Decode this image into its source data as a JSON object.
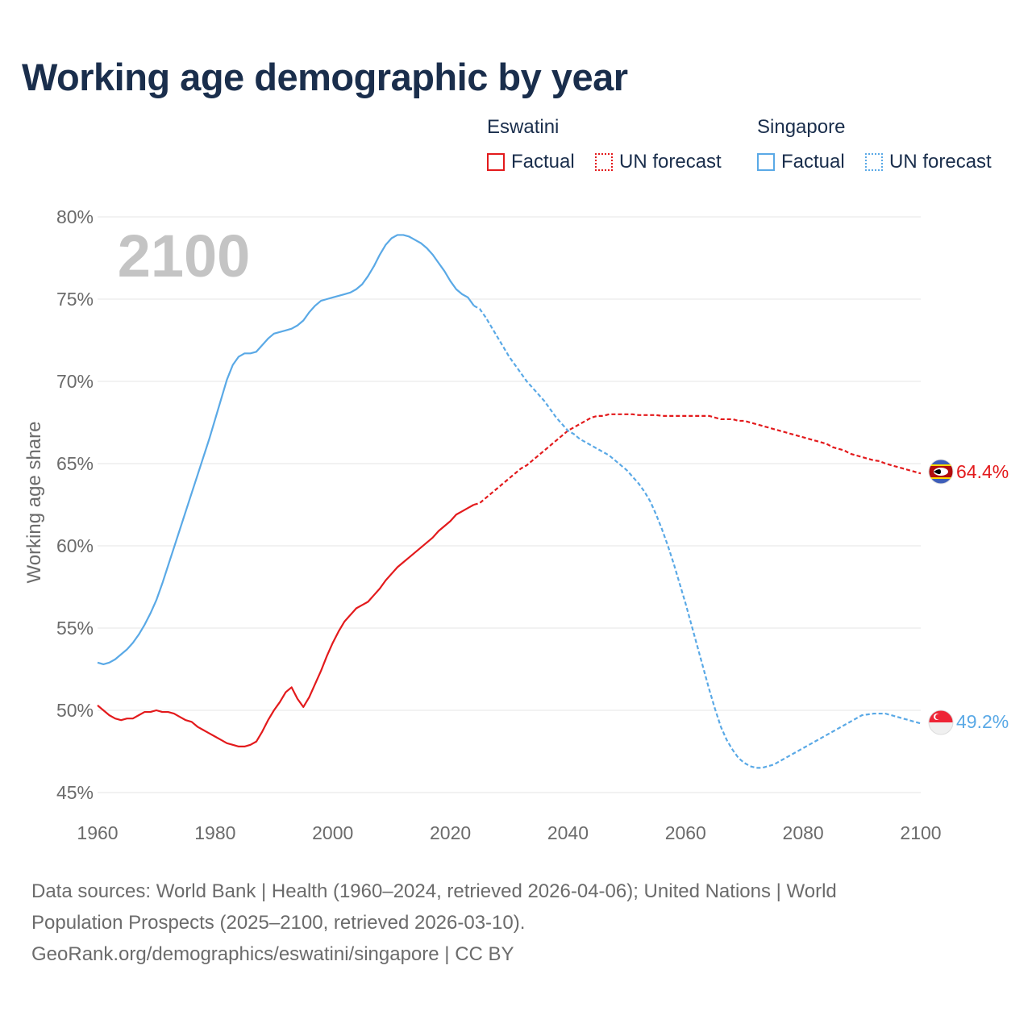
{
  "title": "Working age demographic by year",
  "legend": {
    "groups": [
      {
        "name": "Eswatini",
        "color": "#e31a1c",
        "factual_label": "Factual",
        "forecast_label": "UN forecast"
      },
      {
        "name": "Singapore",
        "color": "#5aa9e6",
        "factual_label": "Factual",
        "forecast_label": "UN forecast"
      }
    ]
  },
  "year_watermark": "2100",
  "end_labels": {
    "eswatini": "64.4%",
    "singapore": "49.2%"
  },
  "footer": {
    "line1": "Data sources: World Bank | Health (1960–2024, retrieved 2026-04-06); United Nations | World",
    "line2": "Population Prospects (2025–2100, retrieved 2026-03-10).",
    "line3": "GeoRank.org/demographics/eswatini/singapore | CC BY"
  },
  "chart_data": {
    "type": "line",
    "title": "Working age demographic by year",
    "xlabel": "",
    "ylabel": "Working age share",
    "xlim": [
      1960,
      2100
    ],
    "ylim": [
      45,
      80
    ],
    "x_ticks": [
      1960,
      1980,
      2000,
      2020,
      2040,
      2060,
      2080,
      2100
    ],
    "x_tick_labels": [
      "1960",
      "1980",
      "2000",
      "2020",
      "2040",
      "2060",
      "2080",
      "2100"
    ],
    "y_ticks": [
      45,
      50,
      55,
      60,
      65,
      70,
      75,
      80
    ],
    "y_tick_labels": [
      "45%",
      "50%",
      "55%",
      "60%",
      "65%",
      "70%",
      "75%",
      "80%"
    ],
    "grid": true,
    "legend_position": "top-right",
    "forecast_start_year": 2024,
    "series": [
      {
        "name": "Eswatini",
        "color": "#e31a1c",
        "end_value": 64.4,
        "points": [
          [
            1960,
            50.3
          ],
          [
            1961,
            50.0
          ],
          [
            1962,
            49.7
          ],
          [
            1963,
            49.5
          ],
          [
            1964,
            49.4
          ],
          [
            1965,
            49.5
          ],
          [
            1966,
            49.5
          ],
          [
            1967,
            49.7
          ],
          [
            1968,
            49.9
          ],
          [
            1969,
            49.9
          ],
          [
            1970,
            50.0
          ],
          [
            1971,
            49.9
          ],
          [
            1972,
            49.9
          ],
          [
            1973,
            49.8
          ],
          [
            1974,
            49.6
          ],
          [
            1975,
            49.4
          ],
          [
            1976,
            49.3
          ],
          [
            1977,
            49.0
          ],
          [
            1978,
            48.8
          ],
          [
            1979,
            48.6
          ],
          [
            1980,
            48.4
          ],
          [
            1981,
            48.2
          ],
          [
            1982,
            48.0
          ],
          [
            1983,
            47.9
          ],
          [
            1984,
            47.8
          ],
          [
            1985,
            47.8
          ],
          [
            1986,
            47.9
          ],
          [
            1987,
            48.1
          ],
          [
            1988,
            48.7
          ],
          [
            1989,
            49.4
          ],
          [
            1990,
            50.0
          ],
          [
            1991,
            50.5
          ],
          [
            1992,
            51.1
          ],
          [
            1993,
            51.4
          ],
          [
            1994,
            50.7
          ],
          [
            1995,
            50.2
          ],
          [
            1996,
            50.8
          ],
          [
            1997,
            51.6
          ],
          [
            1998,
            52.4
          ],
          [
            1999,
            53.3
          ],
          [
            2000,
            54.1
          ],
          [
            2001,
            54.8
          ],
          [
            2002,
            55.4
          ],
          [
            2003,
            55.8
          ],
          [
            2004,
            56.2
          ],
          [
            2005,
            56.4
          ],
          [
            2006,
            56.6
          ],
          [
            2007,
            57.0
          ],
          [
            2008,
            57.4
          ],
          [
            2009,
            57.9
          ],
          [
            2010,
            58.3
          ],
          [
            2011,
            58.7
          ],
          [
            2012,
            59.0
          ],
          [
            2013,
            59.3
          ],
          [
            2014,
            59.6
          ],
          [
            2015,
            59.9
          ],
          [
            2016,
            60.2
          ],
          [
            2017,
            60.5
          ],
          [
            2018,
            60.9
          ],
          [
            2019,
            61.2
          ],
          [
            2020,
            61.5
          ],
          [
            2021,
            61.9
          ],
          [
            2022,
            62.1
          ],
          [
            2023,
            62.3
          ],
          [
            2024,
            62.5
          ],
          [
            2025,
            62.6
          ],
          [
            2026,
            62.9
          ],
          [
            2027,
            63.2
          ],
          [
            2028,
            63.5
          ],
          [
            2029,
            63.8
          ],
          [
            2030,
            64.1
          ],
          [
            2031,
            64.4
          ],
          [
            2032,
            64.7
          ],
          [
            2033,
            64.9
          ],
          [
            2034,
            65.2
          ],
          [
            2035,
            65.5
          ],
          [
            2036,
            65.8
          ],
          [
            2037,
            66.1
          ],
          [
            2038,
            66.4
          ],
          [
            2039,
            66.7
          ],
          [
            2040,
            67.0
          ],
          [
            2041,
            67.2
          ],
          [
            2042,
            67.4
          ],
          [
            2043,
            67.6
          ],
          [
            2044,
            67.8
          ],
          [
            2045,
            67.9
          ],
          [
            2046,
            67.9
          ],
          [
            2047,
            68.0
          ],
          [
            2048,
            68.0
          ],
          [
            2049,
            68.0
          ],
          [
            2050,
            68.0
          ],
          [
            2051,
            68.0
          ],
          [
            2052,
            67.95
          ],
          [
            2053,
            67.95
          ],
          [
            2054,
            67.95
          ],
          [
            2055,
            67.95
          ],
          [
            2056,
            67.9
          ],
          [
            2057,
            67.9
          ],
          [
            2058,
            67.9
          ],
          [
            2059,
            67.9
          ],
          [
            2060,
            67.9
          ],
          [
            2061,
            67.9
          ],
          [
            2062,
            67.9
          ],
          [
            2063,
            67.9
          ],
          [
            2064,
            67.9
          ],
          [
            2065,
            67.8
          ],
          [
            2066,
            67.7
          ],
          [
            2067,
            67.7
          ],
          [
            2068,
            67.7
          ],
          [
            2069,
            67.6
          ],
          [
            2070,
            67.6
          ],
          [
            2071,
            67.5
          ],
          [
            2072,
            67.4
          ],
          [
            2073,
            67.3
          ],
          [
            2074,
            67.2
          ],
          [
            2075,
            67.1
          ],
          [
            2076,
            67.0
          ],
          [
            2077,
            66.9
          ],
          [
            2078,
            66.8
          ],
          [
            2079,
            66.7
          ],
          [
            2080,
            66.6
          ],
          [
            2081,
            66.5
          ],
          [
            2082,
            66.4
          ],
          [
            2083,
            66.3
          ],
          [
            2084,
            66.2
          ],
          [
            2085,
            66.0
          ],
          [
            2086,
            65.9
          ],
          [
            2087,
            65.8
          ],
          [
            2088,
            65.6
          ],
          [
            2089,
            65.5
          ],
          [
            2090,
            65.4
          ],
          [
            2091,
            65.3
          ],
          [
            2092,
            65.2
          ],
          [
            2093,
            65.15
          ],
          [
            2094,
            65.0
          ],
          [
            2095,
            64.9
          ],
          [
            2096,
            64.8
          ],
          [
            2097,
            64.7
          ],
          [
            2098,
            64.6
          ],
          [
            2099,
            64.5
          ],
          [
            2100,
            64.4
          ]
        ]
      },
      {
        "name": "Singapore",
        "color": "#5aa9e6",
        "end_value": 49.2,
        "points": [
          [
            1960,
            52.9
          ],
          [
            1961,
            52.8
          ],
          [
            1962,
            52.9
          ],
          [
            1963,
            53.1
          ],
          [
            1964,
            53.4
          ],
          [
            1965,
            53.7
          ],
          [
            1966,
            54.1
          ],
          [
            1967,
            54.6
          ],
          [
            1968,
            55.2
          ],
          [
            1969,
            55.9
          ],
          [
            1970,
            56.7
          ],
          [
            1971,
            57.7
          ],
          [
            1972,
            58.8
          ],
          [
            1973,
            59.9
          ],
          [
            1974,
            61.0
          ],
          [
            1975,
            62.1
          ],
          [
            1976,
            63.2
          ],
          [
            1977,
            64.3
          ],
          [
            1978,
            65.4
          ],
          [
            1979,
            66.5
          ],
          [
            1980,
            67.7
          ],
          [
            1981,
            68.9
          ],
          [
            1982,
            70.1
          ],
          [
            1983,
            71.0
          ],
          [
            1984,
            71.5
          ],
          [
            1985,
            71.7
          ],
          [
            1986,
            71.7
          ],
          [
            1987,
            71.8
          ],
          [
            1988,
            72.2
          ],
          [
            1989,
            72.6
          ],
          [
            1990,
            72.9
          ],
          [
            1991,
            73.0
          ],
          [
            1992,
            73.1
          ],
          [
            1993,
            73.2
          ],
          [
            1994,
            73.4
          ],
          [
            1995,
            73.7
          ],
          [
            1996,
            74.2
          ],
          [
            1997,
            74.6
          ],
          [
            1998,
            74.9
          ],
          [
            1999,
            75.0
          ],
          [
            2000,
            75.1
          ],
          [
            2001,
            75.2
          ],
          [
            2002,
            75.3
          ],
          [
            2003,
            75.4
          ],
          [
            2004,
            75.6
          ],
          [
            2005,
            75.9
          ],
          [
            2006,
            76.4
          ],
          [
            2007,
            77.0
          ],
          [
            2008,
            77.7
          ],
          [
            2009,
            78.3
          ],
          [
            2010,
            78.7
          ],
          [
            2011,
            78.9
          ],
          [
            2012,
            78.9
          ],
          [
            2013,
            78.8
          ],
          [
            2014,
            78.6
          ],
          [
            2015,
            78.4
          ],
          [
            2016,
            78.1
          ],
          [
            2017,
            77.7
          ],
          [
            2018,
            77.2
          ],
          [
            2019,
            76.7
          ],
          [
            2020,
            76.1
          ],
          [
            2021,
            75.6
          ],
          [
            2022,
            75.3
          ],
          [
            2023,
            75.1
          ],
          [
            2024,
            74.6
          ],
          [
            2025,
            74.4
          ],
          [
            2026,
            73.9
          ],
          [
            2027,
            73.3
          ],
          [
            2028,
            72.7
          ],
          [
            2029,
            72.1
          ],
          [
            2030,
            71.5
          ],
          [
            2031,
            71.0
          ],
          [
            2032,
            70.5
          ],
          [
            2033,
            70.0
          ],
          [
            2034,
            69.6
          ],
          [
            2035,
            69.2
          ],
          [
            2036,
            68.8
          ],
          [
            2037,
            68.3
          ],
          [
            2038,
            67.8
          ],
          [
            2039,
            67.4
          ],
          [
            2040,
            67.0
          ],
          [
            2041,
            66.8
          ],
          [
            2042,
            66.5
          ],
          [
            2043,
            66.3
          ],
          [
            2044,
            66.1
          ],
          [
            2045,
            65.9
          ],
          [
            2046,
            65.7
          ],
          [
            2047,
            65.5
          ],
          [
            2048,
            65.2
          ],
          [
            2049,
            64.9
          ],
          [
            2050,
            64.6
          ],
          [
            2051,
            64.2
          ],
          [
            2052,
            63.8
          ],
          [
            2053,
            63.3
          ],
          [
            2054,
            62.7
          ],
          [
            2055,
            61.9
          ],
          [
            2056,
            61.0
          ],
          [
            2057,
            60.0
          ],
          [
            2058,
            58.9
          ],
          [
            2059,
            57.7
          ],
          [
            2060,
            56.5
          ],
          [
            2061,
            55.2
          ],
          [
            2062,
            53.9
          ],
          [
            2063,
            52.6
          ],
          [
            2064,
            51.3
          ],
          [
            2065,
            50.1
          ],
          [
            2066,
            49.0
          ],
          [
            2067,
            48.2
          ],
          [
            2068,
            47.6
          ],
          [
            2069,
            47.1
          ],
          [
            2070,
            46.8
          ],
          [
            2071,
            46.6
          ],
          [
            2072,
            46.5
          ],
          [
            2073,
            46.5
          ],
          [
            2074,
            46.6
          ],
          [
            2075,
            46.7
          ],
          [
            2076,
            46.9
          ],
          [
            2077,
            47.1
          ],
          [
            2078,
            47.3
          ],
          [
            2079,
            47.5
          ],
          [
            2080,
            47.7
          ],
          [
            2081,
            47.9
          ],
          [
            2082,
            48.1
          ],
          [
            2083,
            48.3
          ],
          [
            2084,
            48.5
          ],
          [
            2085,
            48.7
          ],
          [
            2086,
            48.9
          ],
          [
            2087,
            49.1
          ],
          [
            2088,
            49.3
          ],
          [
            2089,
            49.5
          ],
          [
            2090,
            49.7
          ],
          [
            2091,
            49.75
          ],
          [
            2092,
            49.8
          ],
          [
            2093,
            49.8
          ],
          [
            2094,
            49.8
          ],
          [
            2095,
            49.7
          ],
          [
            2096,
            49.6
          ],
          [
            2097,
            49.5
          ],
          [
            2098,
            49.4
          ],
          [
            2099,
            49.3
          ],
          [
            2100,
            49.2
          ]
        ]
      }
    ]
  }
}
